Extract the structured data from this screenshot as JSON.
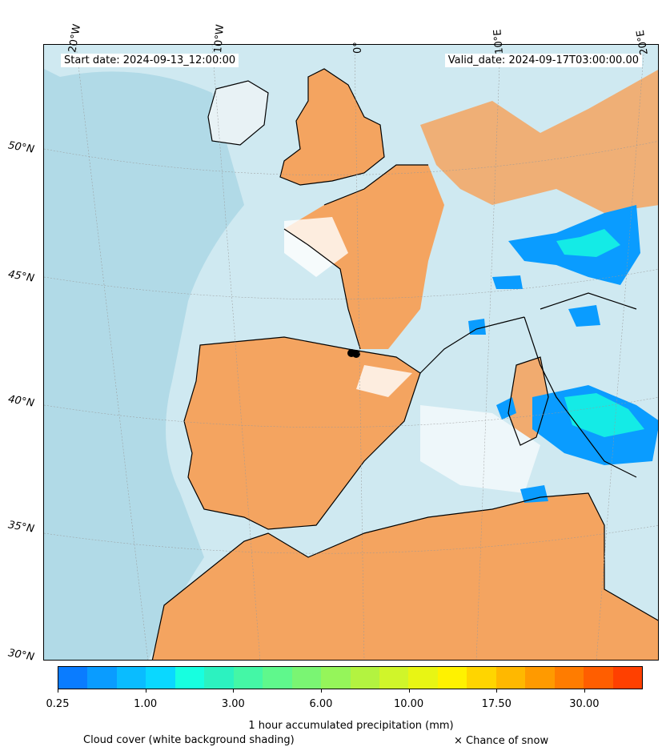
{
  "header": {
    "start_date": "Start date: 2024-09-13_12:00:00",
    "valid_date": "Valid_date: 2024-09-17T03:00:00.00"
  },
  "axes": {
    "longitude_labels": [
      "20°W",
      "10°W",
      "0°",
      "10°E",
      "20°E"
    ],
    "latitude_labels": [
      "50°N",
      "45°N",
      "40°N",
      "35°N",
      "30°N"
    ]
  },
  "colorbar": {
    "title": "1 hour accumulated precipitation (mm)",
    "tick_labels": [
      "0.25",
      "1.00",
      "3.00",
      "6.00",
      "10.00",
      "17.50",
      "30.00"
    ],
    "colors": [
      "#0a7cff",
      "#0a9cff",
      "#0abcff",
      "#0ad8ff",
      "#17ffe0",
      "#2cf2c0",
      "#44f7a6",
      "#5ff88c",
      "#7af573",
      "#95f55a",
      "#b3f340",
      "#d0f52a",
      "#e8f514",
      "#fff200",
      "#ffd500",
      "#ffb800",
      "#ff9a00",
      "#ff7c00",
      "#ff5e00",
      "#ff4000"
    ]
  },
  "legend": {
    "cloud_cover": "Cloud cover (white background shading)",
    "snow": "× Chance of snow"
  },
  "map_colors": {
    "cloud": "#add8e6",
    "land_clear": "#f4a460",
    "precip_main": "#0a9cff",
    "precip_core": "#17ffe0",
    "coastline": "#000000"
  }
}
